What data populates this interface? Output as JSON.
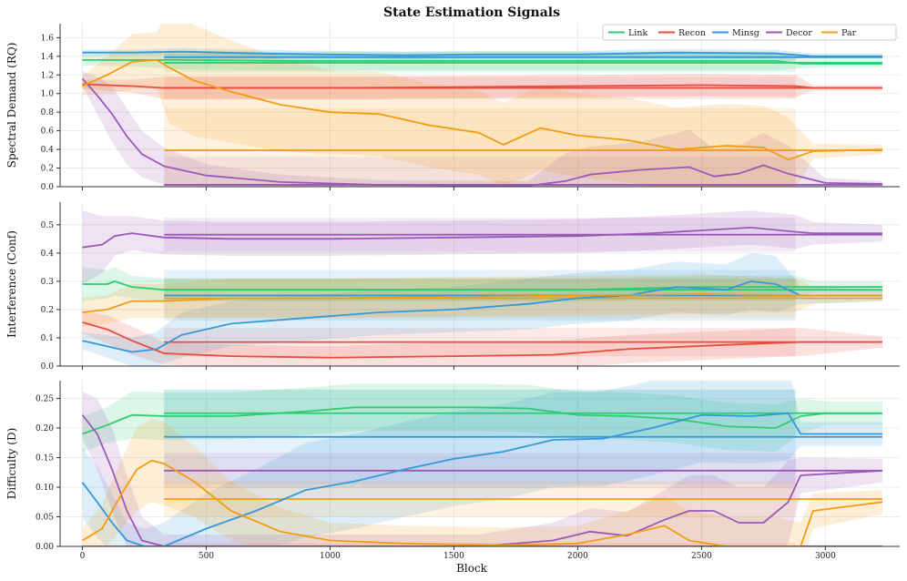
{
  "chart_data": {
    "type": "line",
    "title": "State Estimation Signals",
    "xlabel": "Block",
    "xlim": [
      -90,
      3300
    ],
    "xticks": [
      0,
      500,
      1000,
      1500,
      2000,
      2500,
      3000
    ],
    "xtick_labels": [
      "0",
      "500",
      "1000",
      "1500",
      "2000",
      "2500",
      "3000"
    ],
    "legend": {
      "position": "top-right",
      "entries": [
        {
          "name": "Link",
          "color": "#2ecc71"
        },
        {
          "name": "Recon",
          "color": "#e74c3c"
        },
        {
          "name": "Minsg",
          "color": "#3498db"
        },
        {
          "name": "Decor",
          "color": "#9b59b6"
        },
        {
          "name": "Par",
          "color": "#f39c12"
        }
      ]
    },
    "panels": [
      {
        "ylabel": "Spectral Demand (RQ)",
        "ylim": [
          0,
          1.75
        ],
        "yticks": [
          0.0,
          0.2,
          0.4,
          0.6,
          0.8,
          1.0,
          1.2,
          1.4,
          1.6
        ],
        "ytick_labels": [
          "0.0",
          "0.2",
          "0.4",
          "0.6",
          "0.8",
          "1.0",
          "1.2",
          "1.4",
          "1.6"
        ],
        "series": [
          {
            "name": "Link",
            "color": "#2ecc71",
            "x": [
              0,
              200,
              400,
              800,
              1200,
              1600,
              2000,
              2400,
              2800,
              2900,
              3000,
              3230
            ],
            "y": [
              1.36,
              1.36,
              1.36,
              1.35,
              1.35,
              1.35,
              1.35,
              1.35,
              1.35,
              1.32,
              1.32,
              1.32
            ],
            "band": [
              0.06,
              0.07,
              0.1,
              0.1,
              0.1,
              0.1,
              0.1,
              0.1,
              0.1,
              0.05,
              0.04,
              0.04
            ],
            "const": 1.33
          },
          {
            "name": "Recon",
            "color": "#e74c3c",
            "x": [
              0,
              100,
              200,
              330,
              600,
              1000,
              1500,
              2000,
              2500,
              2880,
              2950,
              3230
            ],
            "y": [
              1.1,
              1.09,
              1.08,
              1.06,
              1.06,
              1.06,
              1.07,
              1.08,
              1.09,
              1.08,
              1.06,
              1.06
            ],
            "band": [
              0.05,
              0.06,
              0.07,
              0.12,
              0.12,
              0.12,
              0.12,
              0.12,
              0.12,
              0.12,
              0.03,
              0.03
            ],
            "const": 1.06
          },
          {
            "name": "Minsg",
            "color": "#3498db",
            "x": [
              0,
              200,
              400,
              700,
              1000,
              1300,
              1600,
              2000,
              2400,
              2800,
              2950,
              3230
            ],
            "y": [
              1.44,
              1.44,
              1.45,
              1.43,
              1.42,
              1.41,
              1.42,
              1.42,
              1.44,
              1.43,
              1.4,
              1.4
            ],
            "band": [
              0.03,
              0.03,
              0.04,
              0.04,
              0.04,
              0.04,
              0.04,
              0.04,
              0.04,
              0.04,
              0.03,
              0.03
            ],
            "const": 1.39
          },
          {
            "name": "Decor",
            "color": "#9b59b6",
            "x": [
              0,
              60,
              120,
              180,
              240,
              330,
              500,
              800,
              1200,
              1800,
              1950,
              2050,
              2250,
              2450,
              2550,
              2650,
              2750,
              2850,
              3000,
              3230
            ],
            "y": [
              1.16,
              0.98,
              0.78,
              0.54,
              0.35,
              0.22,
              0.12,
              0.05,
              0.02,
              0.01,
              0.06,
              0.13,
              0.18,
              0.21,
              0.11,
              0.14,
              0.23,
              0.14,
              0.04,
              0.03
            ],
            "band": [
              0.08,
              0.2,
              0.3,
              0.3,
              0.25,
              0.2,
              0.12,
              0.08,
              0.05,
              0.05,
              0.3,
              0.3,
              0.3,
              0.4,
              0.3,
              0.3,
              0.35,
              0.3,
              0.05,
              0.03
            ],
            "const": 0.02
          },
          {
            "name": "Par",
            "color": "#f39c12",
            "x": [
              0,
              100,
              200,
              300,
              350,
              450,
              600,
              800,
              1000,
              1200,
              1400,
              1600,
              1700,
              1850,
              2000,
              2200,
              2400,
              2600,
              2750,
              2850,
              2950,
              3230
            ],
            "y": [
              1.08,
              1.2,
              1.34,
              1.36,
              1.28,
              1.14,
              1.02,
              0.88,
              0.8,
              0.78,
              0.66,
              0.58,
              0.45,
              0.63,
              0.55,
              0.5,
              0.4,
              0.44,
              0.42,
              0.29,
              0.38,
              0.4
            ],
            "band": [
              0.1,
              0.2,
              0.3,
              0.3,
              0.6,
              0.6,
              0.55,
              0.5,
              0.45,
              0.45,
              0.45,
              0.45,
              0.45,
              0.45,
              0.45,
              0.45,
              0.45,
              0.45,
              0.45,
              0.45,
              0.08,
              0.05
            ],
            "const": 0.39
          }
        ]
      },
      {
        "ylabel": "Interference (Conf)",
        "ylim": [
          0,
          0.58
        ],
        "yticks": [
          0.0,
          0.1,
          0.2,
          0.3,
          0.4,
          0.5
        ],
        "ytick_labels": [
          "0.0",
          "0.1",
          "0.2",
          "0.3",
          "0.4",
          "0.5"
        ],
        "series": [
          {
            "name": "Link",
            "color": "#2ecc71",
            "x": [
              0,
              100,
              130,
              200,
              330,
              600,
              1000,
              1500,
              2000,
              2500,
              2880,
              2950,
              3230
            ],
            "y": [
              0.29,
              0.29,
              0.3,
              0.28,
              0.27,
              0.27,
              0.27,
              0.27,
              0.27,
              0.28,
              0.28,
              0.28,
              0.28
            ],
            "band": [
              0.06,
              0.05,
              0.05,
              0.04,
              0.04,
              0.04,
              0.04,
              0.04,
              0.04,
              0.04,
              0.04,
              0.02,
              0.02
            ],
            "const": 0.27
          },
          {
            "name": "Recon",
            "color": "#e74c3c",
            "x": [
              0,
              100,
              200,
              330,
              600,
              1000,
              1500,
              1900,
              2200,
              2600,
              2900,
              3230
            ],
            "y": [
              0.155,
              0.13,
              0.09,
              0.045,
              0.035,
              0.03,
              0.035,
              0.04,
              0.06,
              0.075,
              0.085,
              0.085
            ],
            "band": [
              0.04,
              0.05,
              0.05,
              0.04,
              0.04,
              0.04,
              0.05,
              0.05,
              0.05,
              0.05,
              0.05,
              0.02
            ],
            "const": 0.085
          },
          {
            "name": "Minsg",
            "color": "#3498db",
            "x": [
              0,
              100,
              200,
              300,
              400,
              600,
              900,
              1200,
              1500,
              1800,
              2000,
              2200,
              2400,
              2600,
              2700,
              2800,
              2900,
              3230
            ],
            "y": [
              0.09,
              0.07,
              0.05,
              0.06,
              0.11,
              0.15,
              0.17,
              0.19,
              0.2,
              0.22,
              0.24,
              0.25,
              0.28,
              0.27,
              0.3,
              0.29,
              0.25,
              0.25
            ],
            "band": [
              0.03,
              0.04,
              0.05,
              0.06,
              0.08,
              0.08,
              0.08,
              0.08,
              0.08,
              0.09,
              0.09,
              0.09,
              0.09,
              0.09,
              0.1,
              0.1,
              0.03,
              0.02
            ],
            "const": 0.25
          },
          {
            "name": "Decor",
            "color": "#9b59b6",
            "x": [
              0,
              80,
              130,
              200,
              330,
              600,
              1000,
              1500,
              2000,
              2300,
              2500,
              2700,
              2880,
              2950,
              3230
            ],
            "y": [
              0.42,
              0.43,
              0.46,
              0.47,
              0.455,
              0.45,
              0.45,
              0.455,
              0.46,
              0.47,
              0.48,
              0.49,
              0.475,
              0.47,
              0.47
            ],
            "band": [
              0.13,
              0.1,
              0.07,
              0.06,
              0.06,
              0.06,
              0.06,
              0.06,
              0.06,
              0.06,
              0.06,
              0.06,
              0.06,
              0.04,
              0.03
            ],
            "const": 0.465
          },
          {
            "name": "Par",
            "color": "#f39c12",
            "x": [
              0,
              100,
              200,
              330,
              600,
              1000,
              1500,
              2000,
              2500,
              2880,
              2950,
              3230
            ],
            "y": [
              0.19,
              0.2,
              0.23,
              0.23,
              0.24,
              0.24,
              0.245,
              0.25,
              0.255,
              0.25,
              0.25,
              0.25
            ],
            "band": [
              0.05,
              0.05,
              0.06,
              0.06,
              0.07,
              0.07,
              0.07,
              0.07,
              0.07,
              0.06,
              0.03,
              0.02
            ],
            "const": 0.24
          }
        ]
      },
      {
        "ylabel": "Difficulty (D)",
        "ylim": [
          0,
          0.28
        ],
        "yticks": [
          0.0,
          0.05,
          0.1,
          0.15,
          0.2,
          0.25
        ],
        "ytick_labels": [
          "0.00",
          "0.05",
          "0.10",
          "0.15",
          "0.20",
          "0.25"
        ],
        "series": [
          {
            "name": "Link",
            "color": "#2ecc71",
            "x": [
              0,
              100,
              200,
              330,
              600,
              900,
              1100,
              1300,
              1600,
              1800,
              2000,
              2200,
              2400,
              2600,
              2800,
              2900,
              3000,
              3230
            ],
            "y": [
              0.19,
              0.205,
              0.222,
              0.22,
              0.22,
              0.228,
              0.235,
              0.235,
              0.235,
              0.233,
              0.222,
              0.22,
              0.215,
              0.203,
              0.2,
              0.22,
              0.225,
              0.225
            ],
            "band": [
              0.03,
              0.03,
              0.04,
              0.04,
              0.04,
              0.04,
              0.04,
              0.04,
              0.04,
              0.04,
              0.04,
              0.04,
              0.04,
              0.04,
              0.04,
              0.03,
              0.02,
              0.02
            ],
            "const": 0.225
          },
          {
            "name": "Recon",
            "color": "#e74c3c",
            "x": [
              0,
              100,
              200,
              300,
              3230
            ],
            "y": [
              0.0,
              0.0,
              0.0,
              0.0,
              0.0
            ],
            "band": [
              0.0,
              0.0,
              0.0,
              0.0,
              0.0
            ],
            "const": 0.0
          },
          {
            "name": "Minsg",
            "color": "#3498db",
            "x": [
              0,
              60,
              120,
              180,
              250,
              330,
              500,
              700,
              900,
              1100,
              1300,
              1500,
              1700,
              1900,
              2100,
              2300,
              2500,
              2700,
              2850,
              2900,
              3230
            ],
            "y": [
              0.108,
              0.075,
              0.04,
              0.01,
              0.0,
              0.0,
              0.03,
              0.06,
              0.095,
              0.11,
              0.13,
              0.148,
              0.16,
              0.18,
              0.182,
              0.2,
              0.222,
              0.22,
              0.225,
              0.19,
              0.19
            ],
            "band": [
              0.06,
              0.06,
              0.05,
              0.03,
              0.03,
              0.04,
              0.06,
              0.07,
              0.08,
              0.08,
              0.08,
              0.08,
              0.08,
              0.08,
              0.08,
              0.08,
              0.08,
              0.08,
              0.08,
              0.02,
              0.02
            ],
            "const": 0.185
          },
          {
            "name": "Decor",
            "color": "#9b59b6",
            "x": [
              0,
              60,
              120,
              180,
              240,
              330,
              600,
              900,
              1200,
              1600,
              1900,
              2050,
              2200,
              2350,
              2450,
              2550,
              2650,
              2750,
              2850,
              2900,
              3230
            ],
            "y": [
              0.222,
              0.19,
              0.13,
              0.06,
              0.01,
              0.0,
              0.0,
              0.0,
              0.0,
              0.0,
              0.01,
              0.025,
              0.018,
              0.045,
              0.06,
              0.06,
              0.04,
              0.04,
              0.075,
              0.12,
              0.128
            ],
            "band": [
              0.04,
              0.06,
              0.07,
              0.06,
              0.04,
              0.02,
              0.02,
              0.02,
              0.02,
              0.02,
              0.03,
              0.04,
              0.04,
              0.05,
              0.06,
              0.06,
              0.06,
              0.06,
              0.07,
              0.03,
              0.02
            ],
            "const": 0.128
          },
          {
            "name": "Par",
            "color": "#f39c12",
            "x": [
              0,
              80,
              160,
              220,
              280,
              330,
              450,
              600,
              800,
              1000,
              1300,
              1700,
              2000,
              2200,
              2350,
              2450,
              2600,
              2800,
              2900,
              2950,
              3230
            ],
            "y": [
              0.01,
              0.03,
              0.09,
              0.13,
              0.145,
              0.14,
              0.11,
              0.06,
              0.025,
              0.01,
              0.005,
              0.002,
              0.005,
              0.02,
              0.035,
              0.01,
              0.0,
              0.0,
              0.0,
              0.06,
              0.075
            ],
            "band": [
              0.02,
              0.04,
              0.06,
              0.07,
              0.07,
              0.07,
              0.06,
              0.05,
              0.04,
              0.03,
              0.03,
              0.03,
              0.03,
              0.04,
              0.05,
              0.05,
              0.05,
              0.05,
              0.04,
              0.03,
              0.02
            ],
            "const": 0.08
          }
        ]
      }
    ]
  }
}
